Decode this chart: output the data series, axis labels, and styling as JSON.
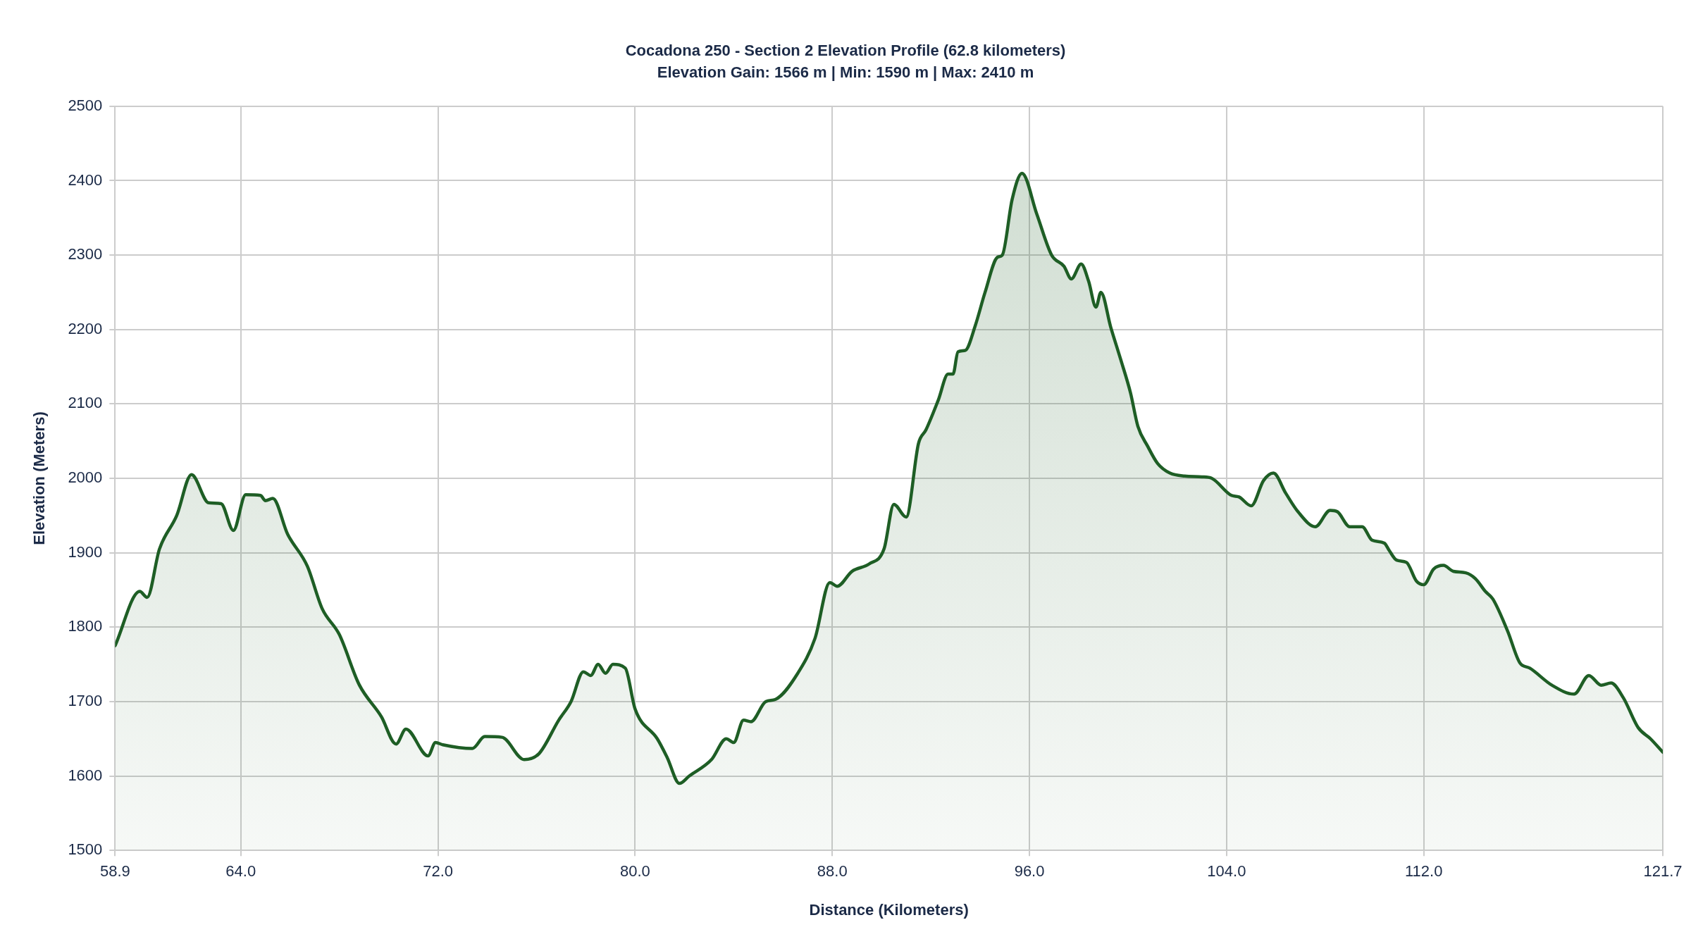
{
  "chart_data": {
    "type": "area",
    "title": "Cocadona 250 - Section 2 Elevation Profile (62.8 kilometers)",
    "subtitle": "Elevation Gain: 1566 m | Min: 1590 m | Max: 2410 m",
    "xlabel": "Distance (Kilometers)",
    "ylabel": "Elevation (Meters)",
    "xlim": [
      58.9,
      121.7
    ],
    "xticks": [
      58.9,
      {
        "value": 64,
        "label": "64.0"
      },
      {
        "value": 72,
        "label": "72.0"
      },
      {
        "value": 80,
        "label": "80.0"
      },
      {
        "value": 88,
        "label": "88.0"
      },
      {
        "value": 96,
        "label": "96.0"
      },
      {
        "value": 104,
        "label": "104.0"
      },
      {
        "value": 112,
        "label": "112.0"
      },
      121.7
    ],
    "ylim": [
      1500,
      2500
    ],
    "yticks": [
      1500,
      1600,
      1700,
      1800,
      1900,
      2000,
      2100,
      2200,
      2300,
      2400,
      2500
    ],
    "grid": true,
    "legend": false,
    "marker": "none",
    "line_style": "solid",
    "series": [
      {
        "color": "#1e5e25",
        "x": [
          58.9,
          59.9,
          60.2,
          60.7,
          61.4,
          62.0,
          62.7,
          63.2,
          63.7,
          64.2,
          64.8,
          65.0,
          65.3,
          65.9,
          66.7,
          67.3,
          68.0,
          68.8,
          69.7,
          70.3,
          70.7,
          71.6,
          71.9,
          72.2,
          73.4,
          73.9,
          74.6,
          75.5,
          76.1,
          76.9,
          77.4,
          77.9,
          78.2,
          78.5,
          78.8,
          79.1,
          79.6,
          80.0,
          80.9,
          81.3,
          81.8,
          82.2,
          83.1,
          83.7,
          84.0,
          84.4,
          84.7,
          85.3,
          85.7,
          86.6,
          87.3,
          87.9,
          88.2,
          88.8,
          89.5,
          90.1,
          90.5,
          91.0,
          91.5,
          91.8,
          92.3,
          92.7,
          92.9,
          93.1,
          93.4,
          93.8,
          94.2,
          94.7,
          94.9,
          95.3,
          95.7,
          96.3,
          96.9,
          97.4,
          97.7,
          98.1,
          98.4,
          98.7,
          98.9,
          99.3,
          99.7,
          100.1,
          100.4,
          100.8,
          101.2,
          101.7,
          102.3,
          103.0,
          103.4,
          104.2,
          104.5,
          105.0,
          105.5,
          105.9,
          106.4,
          106.9,
          107.6,
          108.2,
          108.5,
          109.0,
          109.5,
          109.9,
          110.4,
          110.6,
          110.9,
          111.3,
          111.7,
          112.0,
          112.4,
          112.8,
          113.2,
          113.7,
          114.1,
          114.5,
          114.8,
          115.4,
          115.9,
          116.3,
          117.2,
          118.1,
          118.7,
          119.2,
          119.6,
          120.1,
          120.7,
          121.2,
          121.7
        ],
        "values": [
          1775,
          1848,
          1840,
          1905,
          1950,
          2005,
          1967,
          1966,
          1930,
          1978,
          1977,
          1970,
          1973,
          1925,
          1882,
          1825,
          1790,
          1723,
          1680,
          1643,
          1663,
          1627,
          1645,
          1642,
          1637,
          1653,
          1652,
          1622,
          1630,
          1675,
          1700,
          1740,
          1735,
          1750,
          1738,
          1750,
          1745,
          1690,
          1650,
          1625,
          1590,
          1600,
          1622,
          1650,
          1645,
          1675,
          1673,
          1700,
          1703,
          1738,
          1785,
          1860,
          1855,
          1875,
          1885,
          1905,
          1965,
          1948,
          2047,
          2065,
          2105,
          2140,
          2140,
          2170,
          2172,
          2205,
          2250,
          2297,
          2300,
          2375,
          2410,
          2355,
          2300,
          2285,
          2268,
          2288,
          2265,
          2230,
          2250,
          2203,
          2160,
          2115,
          2070,
          2043,
          2020,
          2007,
          2003,
          2002,
          2000,
          1977,
          1975,
          1963,
          1997,
          2007,
          1980,
          1955,
          1935,
          1957,
          1955,
          1935,
          1935,
          1917,
          1913,
          1903,
          1890,
          1887,
          1862,
          1857,
          1878,
          1883,
          1875,
          1873,
          1865,
          1848,
          1838,
          1795,
          1752,
          1745,
          1722,
          1710,
          1735,
          1722,
          1725,
          1705,
          1665,
          1650,
          1632
        ]
      }
    ]
  }
}
